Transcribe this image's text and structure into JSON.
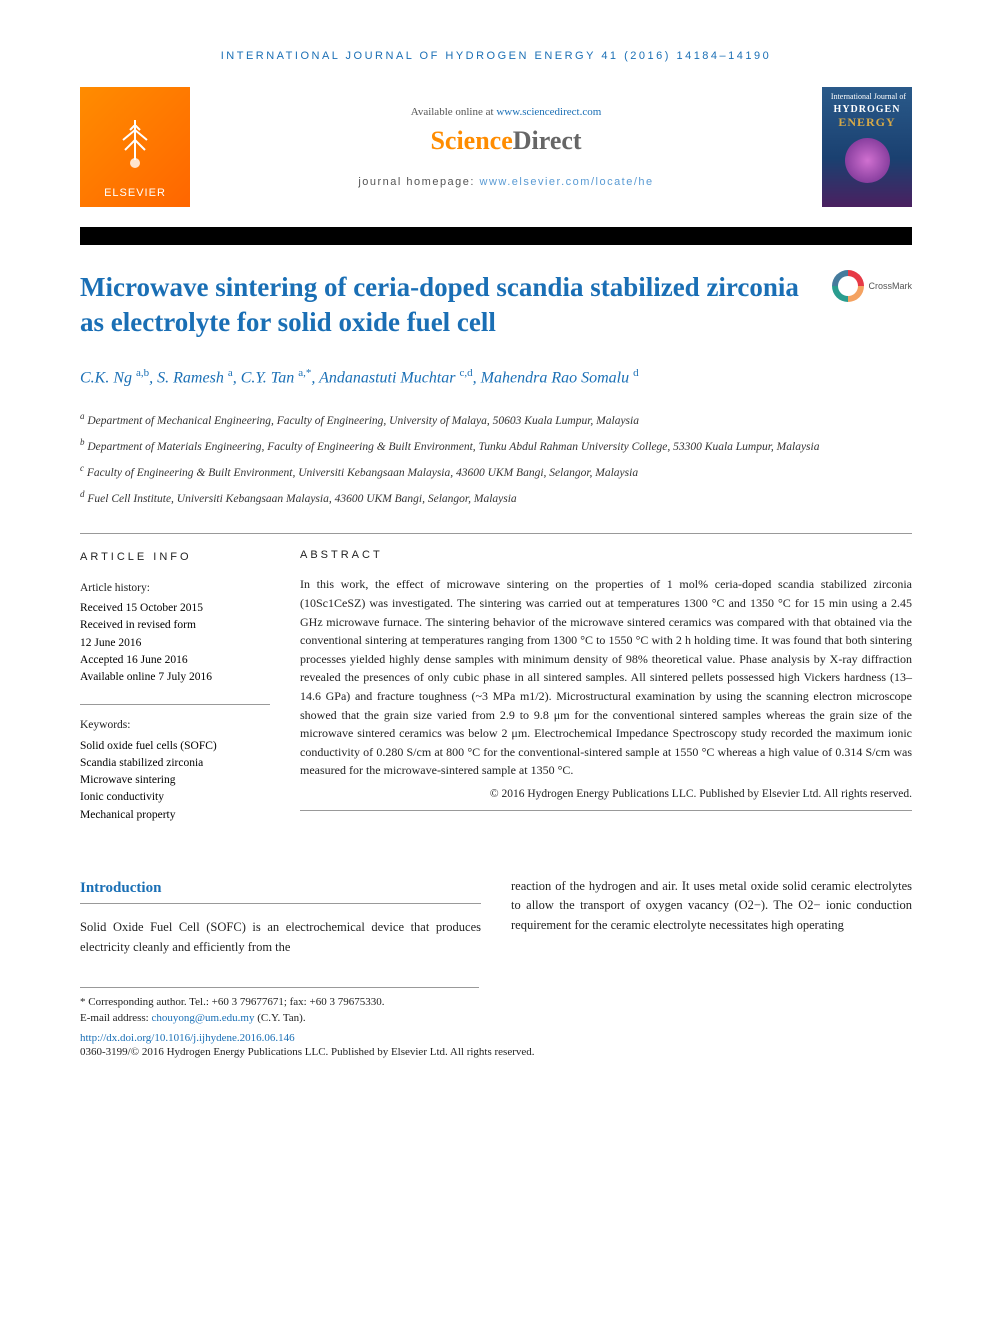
{
  "header": {
    "journal_line": "INTERNATIONAL JOURNAL OF HYDROGEN ENERGY 41 (2016) 14184–14190",
    "available_prefix": "Available online at ",
    "available_link": "www.sciencedirect.com",
    "sd_logo_a": "Science",
    "sd_logo_b": "Direct",
    "homepage_prefix": "journal homepage: ",
    "homepage_link": "www.elsevier.com/locate/he",
    "elsevier": "ELSEVIER",
    "crossmark": "CrossMark",
    "cover_small": "International Journal of",
    "cover_h2": "HYDROGEN",
    "cover_energy": "ENERGY"
  },
  "article": {
    "title": "Microwave sintering of ceria-doped scandia stabilized zirconia as electrolyte for solid oxide fuel cell",
    "authors_html": "C.K. Ng <sup>a,b</sup>, S. Ramesh <sup>a</sup>, C.Y. Tan <sup>a,*</sup>, Andanastuti Muchtar <sup>c,d</sup>, Mahendra Rao Somalu <sup>d</sup>",
    "affiliations": [
      "a Department of Mechanical Engineering, Faculty of Engineering, University of Malaya, 50603 Kuala Lumpur, Malaysia",
      "b Department of Materials Engineering, Faculty of Engineering & Built Environment, Tunku Abdul Rahman University College, 53300 Kuala Lumpur, Malaysia",
      "c Faculty of Engineering & Built Environment, Universiti Kebangsaan Malaysia, 43600 UKM Bangi, Selangor, Malaysia",
      "d Fuel Cell Institute, Universiti Kebangsaan Malaysia, 43600 UKM Bangi, Selangor, Malaysia"
    ]
  },
  "info": {
    "label": "ARTICLE INFO",
    "history_head": "Article history:",
    "history": [
      "Received 15 October 2015",
      "Received in revised form",
      "12 June 2016",
      "Accepted 16 June 2016",
      "Available online 7 July 2016"
    ],
    "keywords_head": "Keywords:",
    "keywords": [
      "Solid oxide fuel cells (SOFC)",
      "Scandia stabilized zirconia",
      "Microwave sintering",
      "Ionic conductivity",
      "Mechanical property"
    ]
  },
  "abstract": {
    "label": "ABSTRACT",
    "text": "In this work, the effect of microwave sintering on the properties of 1 mol% ceria-doped scandia stabilized zirconia (10Sc1CeSZ) was investigated. The sintering was carried out at temperatures 1300 °C and 1350 °C for 15 min using a 2.45 GHz microwave furnace. The sintering behavior of the microwave sintered ceramics was compared with that obtained via the conventional sintering at temperatures ranging from 1300 °C to 1550 °C with 2 h holding time. It was found that both sintering processes yielded highly dense samples with minimum density of 98% theoretical value. Phase analysis by X-ray diffraction revealed the presences of only cubic phase in all sintered samples. All sintered pellets possessed high Vickers hardness (13–14.6 GPa) and fracture toughness (~3 MPa m1/2). Microstructural examination by using the scanning electron microscope showed that the grain size varied from 2.9 to 9.8 μm for the conventional sintered samples whereas the grain size of the microwave sintered ceramics was below 2 μm. Electrochemical Impedance Spectroscopy study recorded the maximum ionic conductivity of 0.280 S/cm at 800 °C for the conventional-sintered sample at 1550 °C whereas a high value of 0.314 S/cm was measured for the microwave-sintered sample at 1350 °C.",
    "copyright": "© 2016 Hydrogen Energy Publications LLC. Published by Elsevier Ltd. All rights reserved."
  },
  "intro": {
    "heading": "Introduction",
    "col1": "Solid Oxide Fuel Cell (SOFC) is an electrochemical device that produces electricity cleanly and efficiently from the",
    "col2": "reaction of the hydrogen and air. It uses metal oxide solid ceramic electrolytes to allow the transport of oxygen vacancy (O2−). The O2− ionic conduction requirement for the ceramic electrolyte necessitates high operating"
  },
  "footnotes": {
    "corresponding": "* Corresponding author. Tel.: +60 3 79677671; fax: +60 3 79675330.",
    "email_label": "E-mail address: ",
    "email": "chouyong@um.edu.my",
    "email_suffix": " (C.Y. Tan).",
    "doi": "http://dx.doi.org/10.1016/j.ijhydene.2016.06.146",
    "issn_copy": "0360-3199/© 2016 Hydrogen Energy Publications LLC. Published by Elsevier Ltd. All rights reserved."
  },
  "colors": {
    "link_blue": "#1a6fb5",
    "orange": "#ff8c00",
    "text": "#222222"
  }
}
